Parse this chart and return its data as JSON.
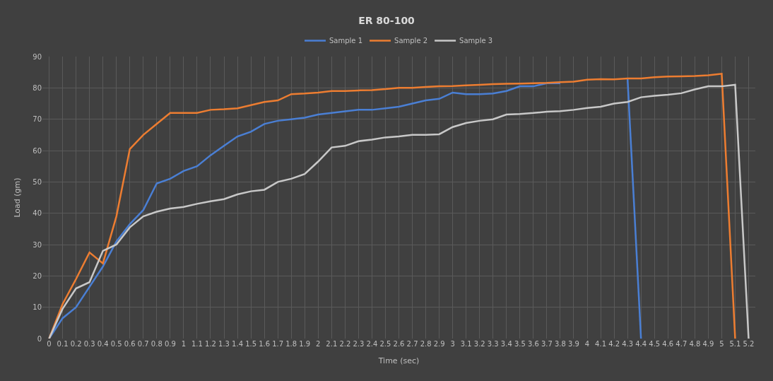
{
  "chart_data": {
    "type": "line",
    "title": "ER 80-100",
    "xlabel": "Time (sec)",
    "ylabel": "Load (gm)",
    "categories": [
      "0",
      "0.1",
      "0.2",
      "0.3",
      "0.4",
      "0.5",
      "0.6",
      "0.7",
      "0.8",
      "0.9",
      "1",
      "1.1",
      "1.2",
      "1.3",
      "1.4",
      "1.5",
      "1.6",
      "1.7",
      "1.8",
      "1.9",
      "2",
      "2.1",
      "2.2",
      "2.3",
      "2.4",
      "2.5",
      "2.6",
      "2.7",
      "2.8",
      "2.9",
      "3",
      "3.1",
      "3.2",
      "3.3",
      "3.4",
      "3.5",
      "3.6",
      "3.7",
      "3.8",
      "3.9",
      "4",
      "4.1",
      "4.2",
      "4.3",
      "4.4",
      "4.5",
      "4.6",
      "4.7",
      "4.8",
      "4.9",
      "5",
      "5.1",
      "5.2"
    ],
    "series": [
      {
        "name": "Sample 1",
        "color": "#4a7fd4",
        "values": [
          0,
          6.5,
          10,
          16.5,
          23,
          31,
          36.5,
          41,
          49.5,
          51,
          53.5,
          55,
          58.5,
          61.5,
          64.5,
          66,
          68.5,
          69.5,
          70,
          70.5,
          71.5,
          72,
          72.5,
          73,
          73,
          73.5,
          74,
          75,
          76,
          76.5,
          78.5,
          78,
          78,
          78.2,
          79,
          80.5,
          80.5,
          81.5,
          81.5,
          null,
          null,
          null,
          null,
          83,
          0,
          null,
          null,
          null,
          null,
          null,
          null,
          null,
          null
        ]
      },
      {
        "name": "Sample 2",
        "color": "#ed7d31",
        "values": [
          0,
          11,
          19,
          27.5,
          24,
          39,
          60.5,
          65,
          68.5,
          72,
          72,
          72,
          73,
          73.2,
          73.5,
          74.5,
          75.5,
          76,
          78,
          78.2,
          78.5,
          79,
          79,
          79.2,
          79.3,
          79.6,
          80,
          80,
          80.3,
          80.5,
          80.6,
          80.8,
          81,
          81.2,
          81.3,
          81.4,
          81.5,
          81.6,
          81.8,
          82,
          82.6,
          82.8,
          82.7,
          83,
          83,
          83.4,
          83.6,
          83.7,
          83.8,
          84,
          84.5,
          0,
          null
        ]
      },
      {
        "name": "Sample 3",
        "color": "#c8c8c8",
        "values": [
          0,
          9.5,
          16,
          18,
          28,
          30,
          35.5,
          39,
          40.5,
          41.5,
          42,
          43,
          43.8,
          44.5,
          46,
          47,
          47.5,
          50,
          51,
          52.5,
          56.5,
          61,
          61.5,
          63,
          63.5,
          64.2,
          64.5,
          65,
          65,
          65.2,
          67.5,
          68.8,
          69.5,
          70,
          71.5,
          71.7,
          72,
          72.4,
          72.6,
          73,
          73.6,
          74,
          75,
          75.5,
          77,
          77.5,
          77.8,
          78.3,
          79.5,
          80.5,
          80.5,
          81,
          0
        ]
      }
    ],
    "ylim": [
      0,
      90
    ],
    "yticks": [
      0,
      10,
      20,
      30,
      40,
      50,
      60,
      70,
      80,
      90
    ],
    "grid": true,
    "legend": "top",
    "marker": "none",
    "line_style": "solid"
  }
}
